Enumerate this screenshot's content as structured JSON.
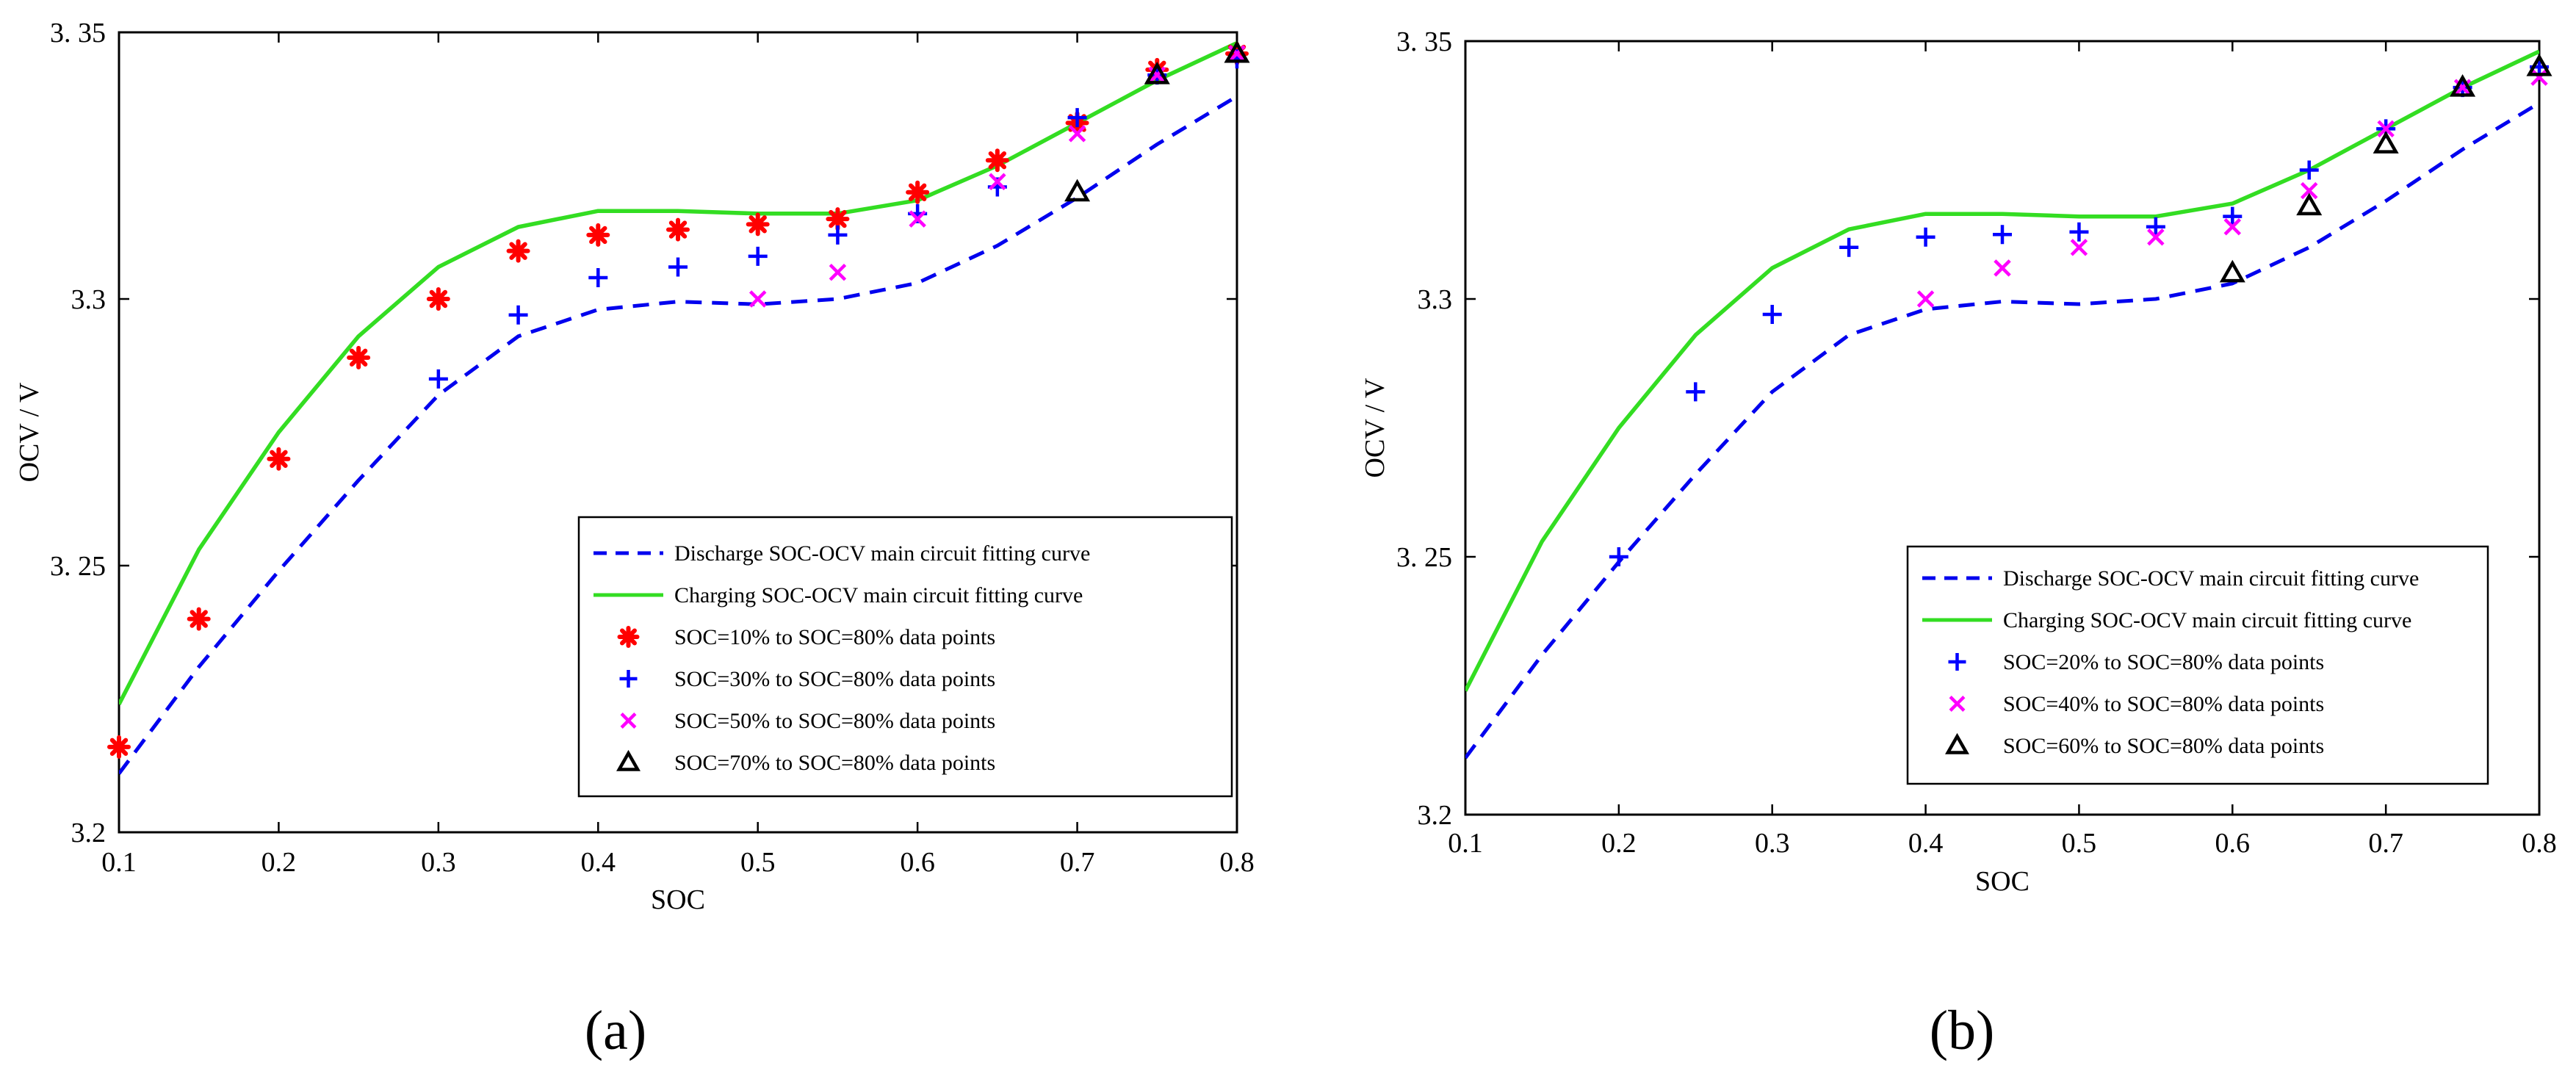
{
  "chart_data": [
    {
      "type": "line",
      "panel_label": "(a)",
      "xlabel": "SOC",
      "ylabel": "OCV / V",
      "xlim": [
        0.1,
        0.8
      ],
      "ylim": [
        3.2,
        3.35
      ],
      "xticks": [
        0.1,
        0.2,
        0.3,
        0.4,
        0.5,
        0.6,
        0.7,
        0.8
      ],
      "xtick_labels": [
        "0.1",
        "0.2",
        "0.3",
        "0.4",
        "0.5",
        "0.6",
        "0.7",
        "0.8"
      ],
      "yticks": [
        3.2,
        3.25,
        3.3,
        3.35
      ],
      "ytick_labels": [
        "3.2",
        "3. 25",
        "3.3",
        "3. 35"
      ],
      "grid": false,
      "legend_position": "bottom-right",
      "series": [
        {
          "name": "Discharge SOC-OCV main circuit fitting curve",
          "kind": "line",
          "style": "dashed",
          "color": "#0000ee",
          "x": [
            0.1,
            0.15,
            0.2,
            0.25,
            0.3,
            0.35,
            0.4,
            0.45,
            0.5,
            0.55,
            0.6,
            0.65,
            0.7,
            0.75,
            0.8
          ],
          "y": [
            3.211,
            3.231,
            3.249,
            3.266,
            3.282,
            3.293,
            3.298,
            3.2995,
            3.299,
            3.3,
            3.303,
            3.31,
            3.319,
            3.329,
            3.338
          ]
        },
        {
          "name": "Charging SOC-OCV main circuit fitting curve",
          "kind": "line",
          "style": "solid",
          "color": "#33dd22",
          "x": [
            0.1,
            0.15,
            0.2,
            0.25,
            0.3,
            0.35,
            0.4,
            0.45,
            0.5,
            0.55,
            0.6,
            0.65,
            0.7,
            0.75,
            0.8
          ],
          "y": [
            3.224,
            3.253,
            3.275,
            3.293,
            3.306,
            3.3135,
            3.3165,
            3.3165,
            3.316,
            3.316,
            3.3185,
            3.325,
            3.333,
            3.341,
            3.348
          ]
        },
        {
          "name": "SOC=10% to SOC=80% data points",
          "kind": "marker",
          "marker": "asterisk",
          "color": "#ff0000",
          "x": [
            0.1,
            0.15,
            0.2,
            0.25,
            0.3,
            0.35,
            0.4,
            0.45,
            0.5,
            0.55,
            0.6,
            0.65,
            0.7,
            0.75,
            0.8
          ],
          "y": [
            3.216,
            3.24,
            3.27,
            3.289,
            3.3,
            3.309,
            3.312,
            3.313,
            3.314,
            3.315,
            3.32,
            3.326,
            3.333,
            3.343,
            3.346
          ]
        },
        {
          "name": "SOC=30% to SOC=80% data points",
          "kind": "marker",
          "marker": "plus",
          "color": "#0000ff",
          "x": [
            0.3,
            0.35,
            0.4,
            0.45,
            0.5,
            0.55,
            0.6,
            0.65,
            0.7,
            0.75,
            0.8
          ],
          "y": [
            3.285,
            3.297,
            3.304,
            3.306,
            3.308,
            3.312,
            3.316,
            3.321,
            3.334,
            3.342,
            3.345
          ]
        },
        {
          "name": "SOC=50% to SOC=80% data points",
          "kind": "marker",
          "marker": "x",
          "color": "#ff00ff",
          "x": [
            0.5,
            0.55,
            0.6,
            0.65,
            0.7,
            0.75,
            0.8
          ],
          "y": [
            3.3,
            3.305,
            3.315,
            3.322,
            3.331,
            3.342,
            3.346
          ]
        },
        {
          "name": "SOC=70% to SOC=80% data points",
          "kind": "marker",
          "marker": "triangle",
          "color": "#000000",
          "x": [
            0.7,
            0.75,
            0.8
          ],
          "y": [
            3.32,
            3.342,
            3.346
          ]
        }
      ]
    },
    {
      "type": "line",
      "panel_label": "(b)",
      "xlabel": "SOC",
      "ylabel": "OCV / V",
      "xlim": [
        0.1,
        0.8
      ],
      "ylim": [
        3.2,
        3.35
      ],
      "xticks": [
        0.1,
        0.2,
        0.3,
        0.4,
        0.5,
        0.6,
        0.7,
        0.8
      ],
      "xtick_labels": [
        "0.1",
        "0.2",
        "0.3",
        "0.4",
        "0.5",
        "0.6",
        "0.7",
        "0.8"
      ],
      "yticks": [
        3.2,
        3.25,
        3.3,
        3.35
      ],
      "ytick_labels": [
        "3.2",
        "3. 25",
        "3.3",
        "3. 35"
      ],
      "grid": false,
      "legend_position": "bottom-right",
      "series": [
        {
          "name": "Discharge SOC-OCV main circuit fitting curve",
          "kind": "line",
          "style": "dashed",
          "color": "#0000ee",
          "x": [
            0.1,
            0.15,
            0.2,
            0.25,
            0.3,
            0.35,
            0.4,
            0.45,
            0.5,
            0.55,
            0.6,
            0.65,
            0.7,
            0.75,
            0.8
          ],
          "y": [
            3.211,
            3.231,
            3.249,
            3.266,
            3.282,
            3.293,
            3.298,
            3.2995,
            3.299,
            3.3,
            3.303,
            3.31,
            3.319,
            3.329,
            3.338
          ]
        },
        {
          "name": "Charging SOC-OCV main circuit fitting curve",
          "kind": "line",
          "style": "solid",
          "color": "#33dd22",
          "x": [
            0.1,
            0.15,
            0.2,
            0.25,
            0.3,
            0.35,
            0.4,
            0.45,
            0.5,
            0.55,
            0.6,
            0.65,
            0.7,
            0.75,
            0.8
          ],
          "y": [
            3.224,
            3.253,
            3.275,
            3.293,
            3.306,
            3.3135,
            3.3165,
            3.3165,
            3.316,
            3.316,
            3.3185,
            3.325,
            3.333,
            3.341,
            3.348
          ]
        },
        {
          "name": "SOC=20% to SOC=80% data points",
          "kind": "marker",
          "marker": "plus",
          "color": "#0000ff",
          "x": [
            0.2,
            0.25,
            0.3,
            0.35,
            0.4,
            0.45,
            0.5,
            0.55,
            0.6,
            0.65,
            0.7,
            0.75,
            0.8
          ],
          "y": [
            3.25,
            3.282,
            3.297,
            3.31,
            3.312,
            3.3125,
            3.313,
            3.314,
            3.316,
            3.325,
            3.333,
            3.341,
            3.345
          ]
        },
        {
          "name": "SOC=40% to SOC=80% data points",
          "kind": "marker",
          "marker": "x",
          "color": "#ff00ff",
          "x": [
            0.4,
            0.45,
            0.5,
            0.55,
            0.6,
            0.65,
            0.7,
            0.75,
            0.8
          ],
          "y": [
            3.3,
            3.306,
            3.31,
            3.312,
            3.314,
            3.321,
            3.333,
            3.341,
            3.343
          ]
        },
        {
          "name": "SOC=60% to SOC=80% data points",
          "kind": "marker",
          "marker": "triangle",
          "color": "#000000",
          "x": [
            0.6,
            0.65,
            0.7,
            0.75,
            0.8
          ],
          "y": [
            3.305,
            3.318,
            3.33,
            3.341,
            3.345
          ]
        }
      ]
    }
  ]
}
